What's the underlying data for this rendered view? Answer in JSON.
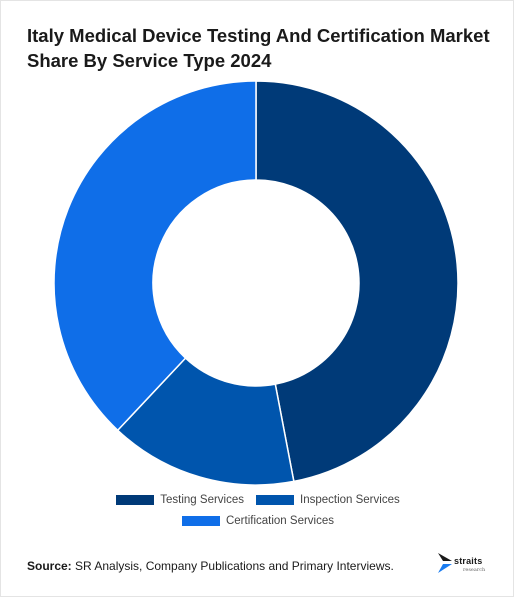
{
  "title": "Italy Medical Device Testing And Certification Market Share By Service Type 2024",
  "chart_data": {
    "type": "pie",
    "variant": "donut",
    "categories": [
      "Testing Services",
      "Inspection Services",
      "Certification Services"
    ],
    "values": [
      47,
      15,
      38
    ],
    "colors": [
      "#003a78",
      "#0055ad",
      "#0f6ee8"
    ],
    "legend_position": "bottom"
  },
  "legend": [
    {
      "label": "Testing Services",
      "color": "#003a78"
    },
    {
      "label": "Inspection Services",
      "color": "#0055ad"
    },
    {
      "label": "Certification Services",
      "color": "#0f6ee8"
    }
  ],
  "source": {
    "label": "Source:",
    "text": " SR Analysis, Company Publications and Primary Interviews."
  },
  "logo": {
    "name": "straits",
    "sub": "research"
  }
}
